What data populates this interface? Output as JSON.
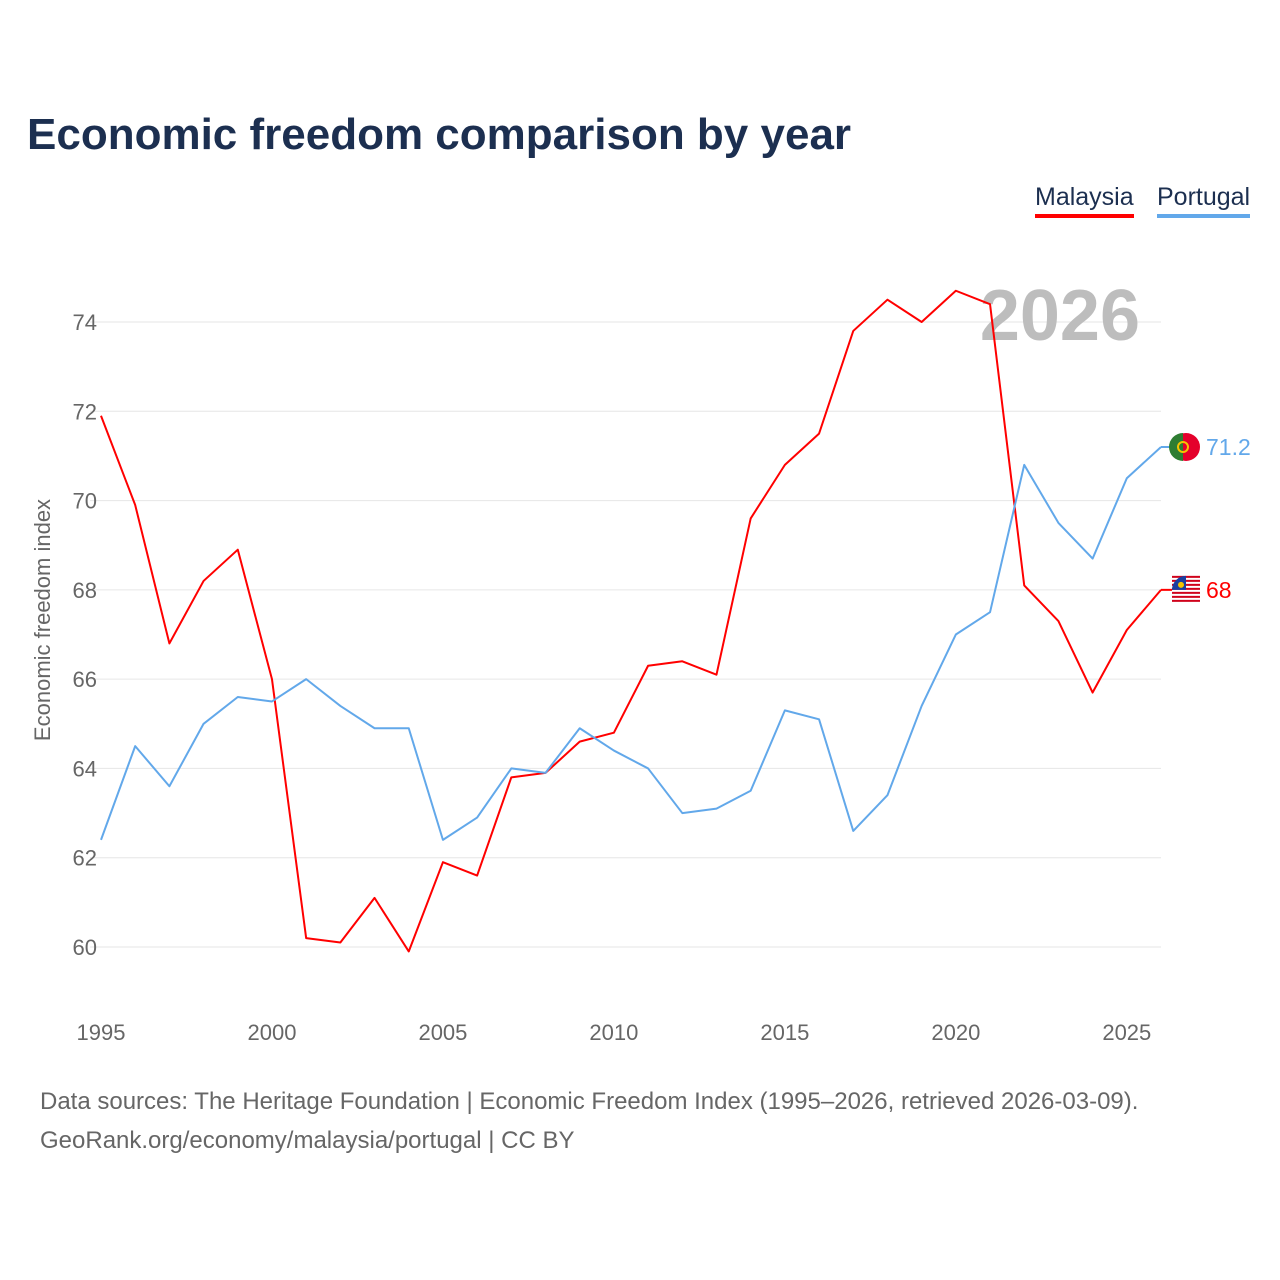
{
  "chart_data": {
    "type": "line",
    "title": "Economic freedom comparison by year",
    "ylabel": "Economic freedom index",
    "xlabel": "",
    "ylim": [
      58.8,
      75.5
    ],
    "xlim": [
      1995,
      2026
    ],
    "yticks": [
      60,
      62,
      64,
      66,
      68,
      70,
      72,
      74
    ],
    "xticks": [
      1995,
      2000,
      2005,
      2010,
      2015,
      2020,
      2025
    ],
    "grid": true,
    "legend_position": "top-right",
    "year_label": "2026",
    "x": [
      1995,
      1996,
      1997,
      1998,
      1999,
      2000,
      2001,
      2002,
      2003,
      2004,
      2005,
      2006,
      2007,
      2008,
      2009,
      2010,
      2011,
      2012,
      2013,
      2014,
      2015,
      2016,
      2017,
      2018,
      2019,
      2020,
      2021,
      2022,
      2023,
      2024,
      2025,
      2026
    ],
    "series": [
      {
        "name": "Malaysia",
        "color": "#ff0000",
        "end_label": "68",
        "values": [
          71.9,
          69.9,
          66.8,
          68.2,
          68.9,
          66.0,
          60.2,
          60.1,
          61.1,
          59.9,
          61.9,
          61.6,
          63.8,
          63.9,
          64.6,
          64.8,
          66.3,
          66.4,
          66.1,
          69.6,
          70.8,
          71.5,
          73.8,
          74.5,
          74.0,
          74.7,
          74.4,
          68.1,
          67.3,
          65.7,
          67.1,
          68.0
        ]
      },
      {
        "name": "Portugal",
        "color": "#62a8ea",
        "end_label": "71.2",
        "values": [
          62.4,
          64.5,
          63.6,
          65.0,
          65.6,
          65.5,
          66.0,
          65.4,
          64.9,
          64.9,
          62.4,
          62.9,
          64.0,
          63.9,
          64.9,
          64.4,
          64.0,
          63.0,
          63.1,
          63.5,
          65.3,
          65.1,
          62.6,
          63.4,
          65.4,
          67.0,
          67.5,
          70.8,
          69.5,
          68.7,
          70.5,
          71.2
        ]
      }
    ]
  },
  "footer": {
    "line1": "Data sources: The Heritage Foundation | Economic Freedom Index (1995–2026, retrieved 2026-03-09).",
    "line2": "GeoRank.org/economy/malaysia/portugal | CC BY"
  }
}
